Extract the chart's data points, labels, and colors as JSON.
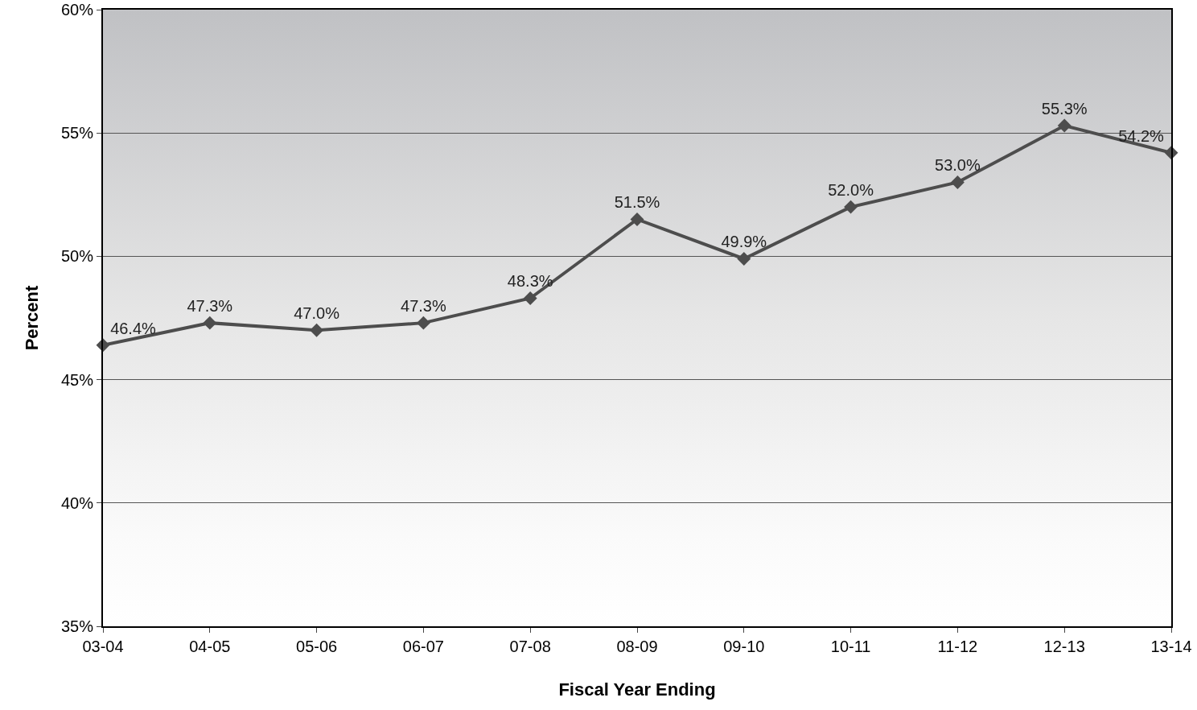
{
  "chart_data": {
    "type": "line",
    "xlabel": "Fiscal Year Ending",
    "ylabel": "Percent",
    "categories": [
      "03-04",
      "04-05",
      "05-06",
      "06-07",
      "07-08",
      "08-09",
      "09-10",
      "10-11",
      "11-12",
      "12-13",
      "13-14"
    ],
    "series": [
      {
        "color": "#4d4d4d",
        "values": [
          46.4,
          47.3,
          47.0,
          47.3,
          48.3,
          51.5,
          49.9,
          52.0,
          53.0,
          55.3,
          54.2
        ],
        "value_labels": [
          "46.4%",
          "47.3%",
          "47.0%",
          "47.3%",
          "48.3%",
          "51.5%",
          "49.9%",
          "52.0%",
          "53.0%",
          "55.3%",
          "54.2%"
        ]
      }
    ],
    "ylim": [
      35,
      60
    ],
    "yticks": [
      {
        "value": 35,
        "label": "35%"
      },
      {
        "value": 40,
        "label": "40%"
      },
      {
        "value": 45,
        "label": "45%"
      },
      {
        "value": 50,
        "label": "50%"
      },
      {
        "value": 55,
        "label": "55%"
      },
      {
        "value": 60,
        "label": "60%"
      }
    ],
    "grid": "y",
    "marker": "diamond",
    "line_style": "solid"
  }
}
